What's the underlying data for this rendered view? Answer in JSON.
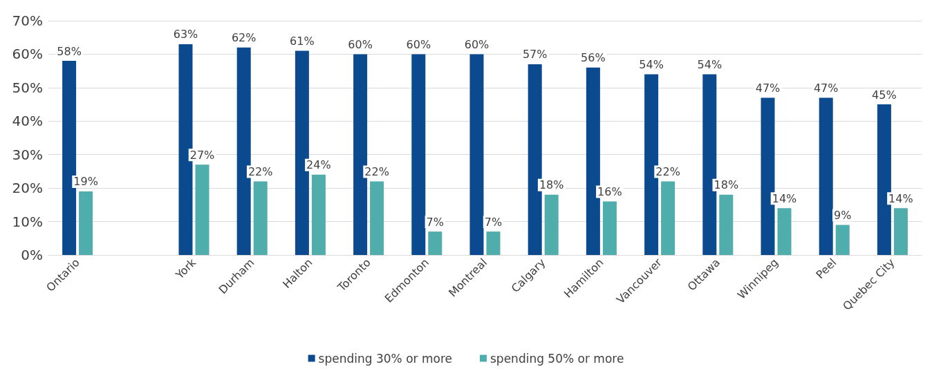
{
  "chart_data": {
    "type": "bar",
    "categories": [
      "Ontario",
      null,
      "York",
      "Durham",
      "Halton",
      "Toronto",
      "Edmonton",
      "Montreal",
      "Calgary",
      "Hamilton",
      "Vancouver",
      "Ottawa",
      "Winnipeg",
      "Peel",
      "Quebec City"
    ],
    "series": [
      {
        "name": "spending 30% or more",
        "color": "#0b4a8e",
        "values": [
          58,
          null,
          63,
          62,
          61,
          60,
          60,
          60,
          57,
          56,
          54,
          54,
          47,
          47,
          45
        ],
        "value_labels": [
          "58%",
          null,
          "63%",
          "62%",
          "61%",
          "60%",
          "60%",
          "60%",
          "57%",
          "56%",
          "54%",
          "54%",
          "47%",
          "47%",
          "45%"
        ]
      },
      {
        "name": "spending 50% or more",
        "color": "#4fadab",
        "values": [
          19,
          null,
          27,
          22,
          24,
          22,
          7,
          7,
          18,
          16,
          22,
          18,
          14,
          9,
          14
        ],
        "value_labels": [
          "19%",
          null,
          "27%",
          "22%",
          "24%",
          "22%",
          "7%",
          "7%",
          "18%",
          "16%",
          "22%",
          "18%",
          "14%",
          "9%",
          "14%"
        ]
      }
    ],
    "ylim": [
      0,
      70
    ],
    "yticks": [
      {
        "value": 0,
        "label": "0%"
      },
      {
        "value": 10,
        "label": "10%"
      },
      {
        "value": 20,
        "label": "20%"
      },
      {
        "value": 30,
        "label": "30%"
      },
      {
        "value": 40,
        "label": "40%"
      },
      {
        "value": 50,
        "label": "50%"
      },
      {
        "value": 60,
        "label": "60%"
      },
      {
        "value": 70,
        "label": "70%"
      }
    ],
    "grid": "y",
    "legend": "bottom"
  }
}
